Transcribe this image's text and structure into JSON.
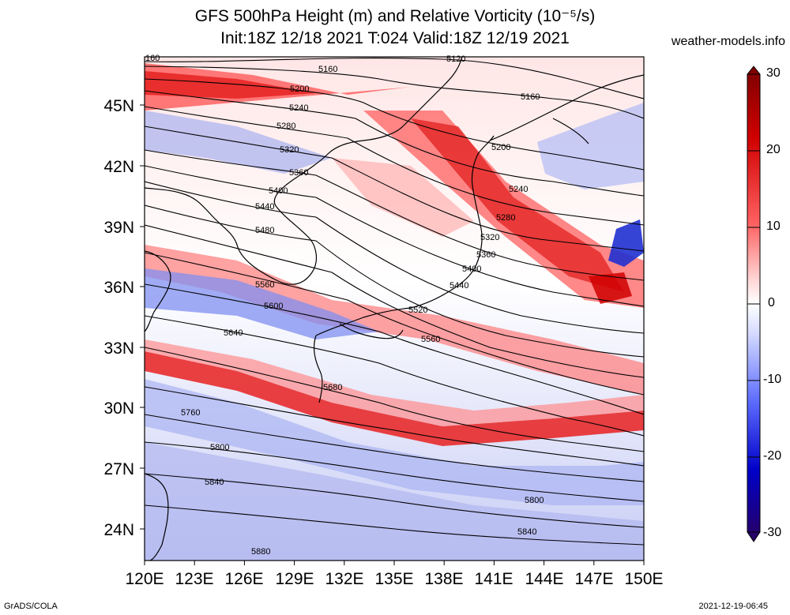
{
  "title": {
    "line1": "GFS 500hPa Height (m) and Relative Vorticity (10⁻⁵/s)",
    "line2": "Init:18Z 12/18 2021 T:024 Valid:18Z 12/19 2021"
  },
  "watermark": "weather-models.info",
  "footer": {
    "left": "GrADS/COLA",
    "right": "2021-12-19-06:45"
  },
  "map": {
    "lon_range": [
      120,
      150
    ],
    "lat_range": [
      22.5,
      47.5
    ],
    "lat_labels": [
      "45N",
      "42N",
      "39N",
      "36N",
      "33N",
      "30N",
      "27N",
      "24N"
    ],
    "lon_labels": [
      "120E",
      "123E",
      "126E",
      "129E",
      "132E",
      "135E",
      "138E",
      "141E",
      "144E",
      "147E",
      "150E"
    ],
    "contour_labels": [
      "160",
      "5120",
      "5160",
      "5200",
      "5240",
      "5280",
      "5320",
      "5360",
      "5400",
      "5440",
      "5480",
      "5560",
      "5600",
      "5640",
      "5680",
      "5760",
      "5800",
      "5840",
      "5880",
      "5520",
      "5560",
      "5440",
      "5400",
      "5360",
      "5320",
      "5280",
      "5240",
      "5200",
      "5160",
      "5800",
      "5840"
    ]
  },
  "colorbar": {
    "labels": [
      "30",
      "20",
      "10",
      "0",
      "-10",
      "-20",
      "-30"
    ],
    "colors": [
      "#6b0000",
      "#b50000",
      "#ff1010",
      "#ff8080",
      "#ffd0d0",
      "#ffffff",
      "#d0d8ff",
      "#8ea0ff",
      "#3030ff",
      "#0000b0",
      "#200060"
    ]
  }
}
